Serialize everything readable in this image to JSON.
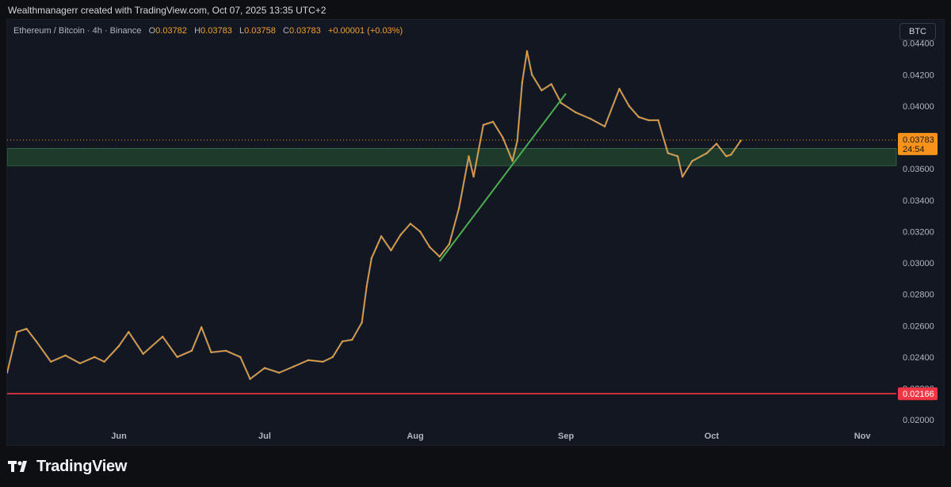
{
  "caption": "Wealthmanagerr created with TradingView.com, Oct 07, 2025 13:35 UTC+2",
  "legend": {
    "symbol": "Ethereum / Bitcoin · 4h · Binance",
    "o_label": "O",
    "o_value": "0.03782",
    "h_label": "H",
    "h_value": "0.03783",
    "l_label": "L",
    "l_value": "0.03758",
    "c_label": "C",
    "c_value": "0.03783",
    "change": "+0.00001 (+0.03%)"
  },
  "currency_badge": "BTC",
  "brand": "TradingView",
  "colors": {
    "background": "#131722",
    "candle": "#f0a030",
    "wick": "#b2b5be",
    "support_zone": "#1e3a2b",
    "support_border": "#3c6b4c",
    "trendline": "#4caf50",
    "floor_line": "#f23645",
    "price_label": "#f7931a",
    "axis_text": "#b2b5be"
  },
  "chart_data": {
    "type": "line",
    "title": "Ethereum / Bitcoin · 4h · Binance",
    "y_ticks": [
      "0.02000",
      "0.02200",
      "0.02400",
      "0.02600",
      "0.02800",
      "0.03000",
      "0.03200",
      "0.03400",
      "0.03600",
      "0.03800",
      "0.04000",
      "0.04200",
      "0.04400"
    ],
    "y_range": [
      0.0195,
      0.0455
    ],
    "x_ticks": [
      {
        "label": "Jun",
        "date": "2025-06-01"
      },
      {
        "label": "Jul",
        "date": "2025-07-01"
      },
      {
        "label": "Aug",
        "date": "2025-08-01"
      },
      {
        "label": "Sep",
        "date": "2025-09-01"
      },
      {
        "label": "Oct",
        "date": "2025-10-01"
      },
      {
        "label": "Nov",
        "date": "2025-11-01"
      }
    ],
    "x_range": [
      "2025-05-09",
      "2025-11-08"
    ],
    "series": [
      {
        "values": [
          {
            "x": "2025-05-09",
            "y": 0.023
          },
          {
            "x": "2025-05-11",
            "y": 0.0256
          },
          {
            "x": "2025-05-13",
            "y": 0.0258
          },
          {
            "x": "2025-05-15",
            "y": 0.025
          },
          {
            "x": "2025-05-18",
            "y": 0.0237
          },
          {
            "x": "2025-05-21",
            "y": 0.0241
          },
          {
            "x": "2025-05-24",
            "y": 0.0236
          },
          {
            "x": "2025-05-27",
            "y": 0.024
          },
          {
            "x": "2025-05-29",
            "y": 0.0237
          },
          {
            "x": "2025-06-01",
            "y": 0.0247
          },
          {
            "x": "2025-06-03",
            "y": 0.0256
          },
          {
            "x": "2025-06-06",
            "y": 0.0242
          },
          {
            "x": "2025-06-10",
            "y": 0.0253
          },
          {
            "x": "2025-06-13",
            "y": 0.024
          },
          {
            "x": "2025-06-16",
            "y": 0.0244
          },
          {
            "x": "2025-06-18",
            "y": 0.0259
          },
          {
            "x": "2025-06-20",
            "y": 0.0243
          },
          {
            "x": "2025-06-23",
            "y": 0.0244
          },
          {
            "x": "2025-06-26",
            "y": 0.024
          },
          {
            "x": "2025-06-28",
            "y": 0.0226
          },
          {
            "x": "2025-07-01",
            "y": 0.0233
          },
          {
            "x": "2025-07-04",
            "y": 0.023
          },
          {
            "x": "2025-07-07",
            "y": 0.0234
          },
          {
            "x": "2025-07-10",
            "y": 0.0238
          },
          {
            "x": "2025-07-13",
            "y": 0.0237
          },
          {
            "x": "2025-07-15",
            "y": 0.024
          },
          {
            "x": "2025-07-17",
            "y": 0.025
          },
          {
            "x": "2025-07-19",
            "y": 0.0251
          },
          {
            "x": "2025-07-21",
            "y": 0.0262
          },
          {
            "x": "2025-07-22",
            "y": 0.0285
          },
          {
            "x": "2025-07-23",
            "y": 0.0303
          },
          {
            "x": "2025-07-24",
            "y": 0.031
          },
          {
            "x": "2025-07-25",
            "y": 0.0317
          },
          {
            "x": "2025-07-27",
            "y": 0.0308
          },
          {
            "x": "2025-07-29",
            "y": 0.0318
          },
          {
            "x": "2025-07-31",
            "y": 0.0325
          },
          {
            "x": "2025-08-02",
            "y": 0.032
          },
          {
            "x": "2025-08-04",
            "y": 0.031
          },
          {
            "x": "2025-08-06",
            "y": 0.0304
          },
          {
            "x": "2025-08-08",
            "y": 0.0312
          },
          {
            "x": "2025-08-10",
            "y": 0.0335
          },
          {
            "x": "2025-08-12",
            "y": 0.0368
          },
          {
            "x": "2025-08-13",
            "y": 0.0355
          },
          {
            "x": "2025-08-15",
            "y": 0.0388
          },
          {
            "x": "2025-08-17",
            "y": 0.039
          },
          {
            "x": "2025-08-19",
            "y": 0.038
          },
          {
            "x": "2025-08-21",
            "y": 0.0365
          },
          {
            "x": "2025-08-22",
            "y": 0.0378
          },
          {
            "x": "2025-08-23",
            "y": 0.0415
          },
          {
            "x": "2025-08-24",
            "y": 0.0435
          },
          {
            "x": "2025-08-25",
            "y": 0.042
          },
          {
            "x": "2025-08-27",
            "y": 0.041
          },
          {
            "x": "2025-08-29",
            "y": 0.0414
          },
          {
            "x": "2025-08-31",
            "y": 0.0402
          },
          {
            "x": "2025-09-03",
            "y": 0.0396
          },
          {
            "x": "2025-09-06",
            "y": 0.0392
          },
          {
            "x": "2025-09-09",
            "y": 0.0387
          },
          {
            "x": "2025-09-12",
            "y": 0.0411
          },
          {
            "x": "2025-09-14",
            "y": 0.04
          },
          {
            "x": "2025-09-16",
            "y": 0.0393
          },
          {
            "x": "2025-09-18",
            "y": 0.0391
          },
          {
            "x": "2025-09-20",
            "y": 0.0391
          },
          {
            "x": "2025-09-22",
            "y": 0.037
          },
          {
            "x": "2025-09-24",
            "y": 0.0368
          },
          {
            "x": "2025-09-25",
            "y": 0.0355
          },
          {
            "x": "2025-09-27",
            "y": 0.0365
          },
          {
            "x": "2025-09-30",
            "y": 0.037
          },
          {
            "x": "2025-10-02",
            "y": 0.0376
          },
          {
            "x": "2025-10-04",
            "y": 0.0368
          },
          {
            "x": "2025-10-05",
            "y": 0.0369
          },
          {
            "x": "2025-10-07",
            "y": 0.0378
          }
        ]
      }
    ],
    "support_zone": {
      "low": 0.0362,
      "high": 0.0373
    },
    "horizontal_line": 0.02166,
    "trendline": {
      "start": {
        "x": "2025-08-06",
        "y": 0.0301
      },
      "end": {
        "x": "2025-09-01",
        "y": 0.0408
      }
    },
    "current_price": {
      "label": "0.03783",
      "countdown": "24:54",
      "value": 0.03783
    },
    "floor_label": "0.02166"
  }
}
